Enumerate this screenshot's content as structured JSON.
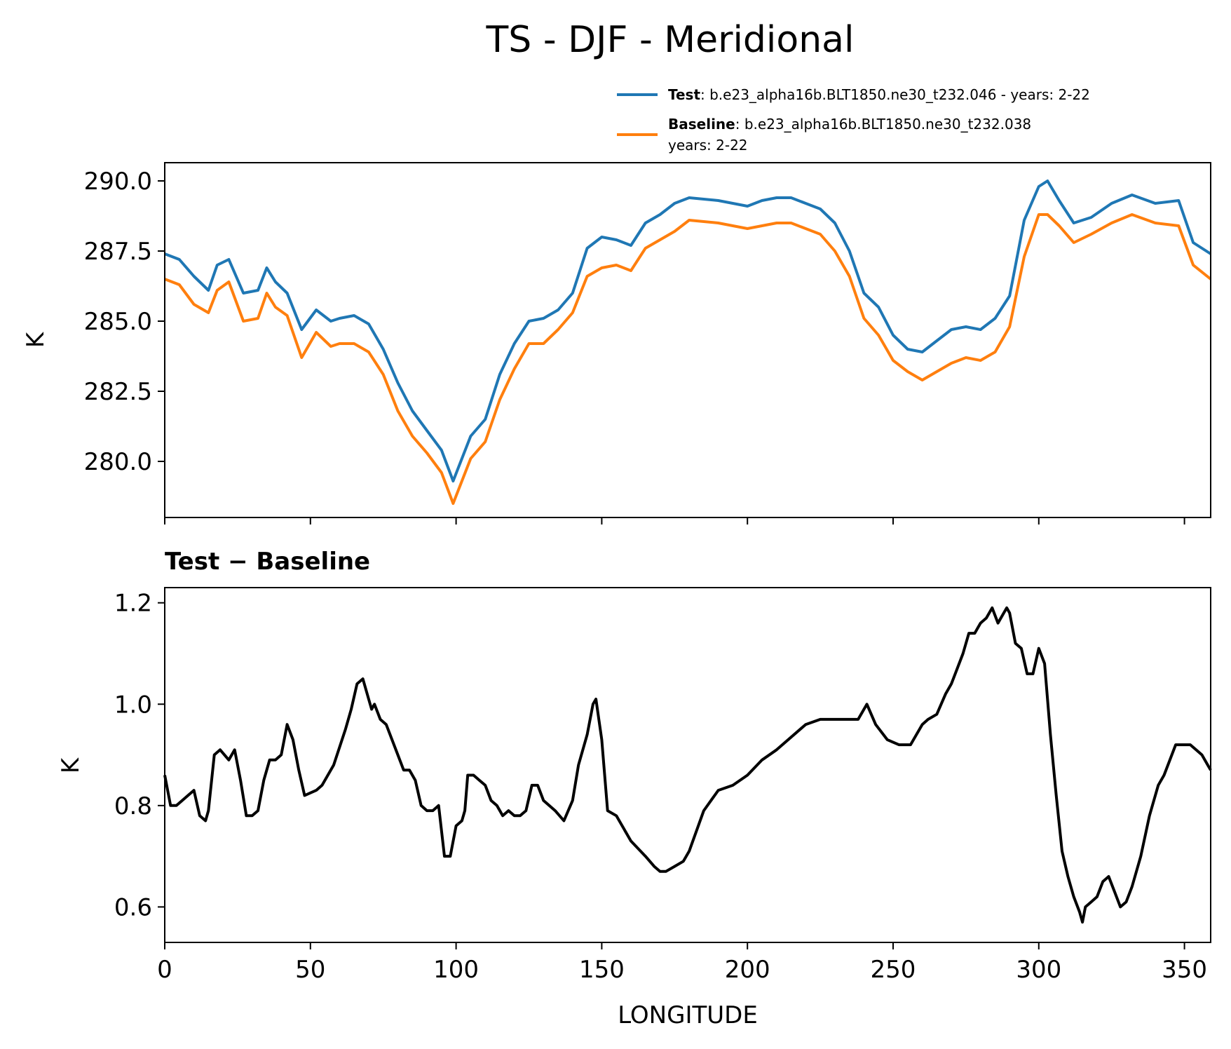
{
  "chart_data": [
    {
      "type": "line",
      "title": "TS - DJF - Meridional",
      "xlabel": "",
      "ylabel": "K",
      "xlim": [
        0,
        359
      ],
      "ylim": [
        278.0,
        290.65
      ],
      "xticks": [
        0,
        50,
        100,
        150,
        200,
        250,
        300,
        350
      ],
      "yticks": [
        280.0,
        282.5,
        285.0,
        287.5,
        290.0
      ],
      "ytick_labels": [
        "280.0",
        "282.5",
        "285.0",
        "287.5",
        "290.0"
      ],
      "legend_position": "top-right, above the plot",
      "grid": false,
      "series": [
        {
          "name": "Test",
          "label": "Test",
          "detail": ": b.e23_alpha16b.BLT1850.ne30_t232.046 - years: 2-22",
          "color": "#1f77b4",
          "x": [
            0,
            5,
            10,
            15,
            18,
            22,
            27,
            32,
            35,
            38,
            42,
            47,
            52,
            57,
            60,
            65,
            70,
            75,
            80,
            85,
            90,
            95,
            99,
            102,
            105,
            110,
            115,
            120,
            125,
            130,
            135,
            140,
            145,
            150,
            155,
            160,
            165,
            170,
            175,
            180,
            190,
            200,
            205,
            210,
            215,
            220,
            225,
            230,
            235,
            240,
            245,
            250,
            255,
            260,
            265,
            270,
            275,
            280,
            285,
            290,
            295,
            300,
            303,
            307,
            312,
            318,
            325,
            332,
            340,
            348,
            353,
            359
          ],
          "values": [
            287.4,
            287.2,
            286.6,
            286.1,
            287.0,
            287.2,
            286.0,
            286.1,
            286.9,
            286.4,
            286.0,
            284.7,
            285.4,
            285.0,
            285.1,
            285.2,
            284.9,
            284.0,
            282.8,
            281.8,
            281.1,
            280.4,
            279.3,
            280.1,
            280.9,
            281.5,
            283.1,
            284.2,
            285.0,
            285.1,
            285.4,
            286.0,
            287.6,
            288.0,
            287.9,
            287.7,
            288.5,
            288.8,
            289.2,
            289.4,
            289.3,
            289.1,
            289.3,
            289.4,
            289.4,
            289.2,
            289.0,
            288.5,
            287.5,
            286.0,
            285.5,
            284.5,
            284.0,
            283.9,
            284.3,
            284.7,
            284.8,
            284.7,
            285.1,
            285.9,
            288.6,
            289.8,
            290.0,
            289.3,
            288.5,
            288.7,
            289.2,
            289.5,
            289.2,
            289.3,
            287.8,
            287.4
          ]
        },
        {
          "name": "Baseline",
          "label": "Baseline",
          "detail": ": b.e23_alpha16b.BLT1850.ne30_t232.038",
          "detail2": "years: 2-22",
          "color": "#ff7f0e",
          "x": [
            0,
            5,
            10,
            15,
            18,
            22,
            27,
            32,
            35,
            38,
            42,
            47,
            52,
            57,
            60,
            65,
            70,
            75,
            80,
            85,
            90,
            95,
            99,
            102,
            105,
            110,
            115,
            120,
            125,
            130,
            135,
            140,
            145,
            150,
            155,
            160,
            165,
            170,
            175,
            180,
            190,
            200,
            205,
            210,
            215,
            220,
            225,
            230,
            235,
            240,
            245,
            250,
            255,
            260,
            265,
            270,
            275,
            280,
            285,
            290,
            295,
            300,
            303,
            307,
            312,
            318,
            325,
            332,
            340,
            348,
            353,
            359
          ],
          "values": [
            286.5,
            286.3,
            285.6,
            285.3,
            286.1,
            286.4,
            285.0,
            285.1,
            286.0,
            285.5,
            285.2,
            283.7,
            284.6,
            284.1,
            284.2,
            284.2,
            283.9,
            283.1,
            281.8,
            280.9,
            280.3,
            279.6,
            278.5,
            279.3,
            280.1,
            280.7,
            282.2,
            283.3,
            284.2,
            284.2,
            284.7,
            285.3,
            286.6,
            286.9,
            287.0,
            286.8,
            287.6,
            287.9,
            288.2,
            288.6,
            288.5,
            288.3,
            288.4,
            288.5,
            288.5,
            288.3,
            288.1,
            287.5,
            286.6,
            285.1,
            284.5,
            283.6,
            283.2,
            282.9,
            283.2,
            283.5,
            283.7,
            283.6,
            283.9,
            284.8,
            287.3,
            288.8,
            288.8,
            288.4,
            287.8,
            288.1,
            288.5,
            288.8,
            288.5,
            288.4,
            287.0,
            286.5
          ]
        }
      ],
      "legend": [
        {
          "label": "Test",
          "detail": ": b.e23_alpha16b.BLT1850.ne30_t232.046 - years: 2-22"
        },
        {
          "label": "Baseline",
          "detail": ": b.e23_alpha16b.BLT1850.ne30_t232.038",
          "detail2": "years: 2-22"
        }
      ]
    },
    {
      "type": "line",
      "title": "Test − Baseline",
      "xlabel": "LONGITUDE",
      "ylabel": "K",
      "xlim": [
        0,
        359
      ],
      "ylim": [
        0.53,
        1.23
      ],
      "xticks": [
        0,
        50,
        100,
        150,
        200,
        250,
        300,
        350
      ],
      "xtick_labels": [
        "0",
        "50",
        "100",
        "150",
        "200",
        "250",
        "300",
        "350"
      ],
      "yticks": [
        0.6,
        0.8,
        1.0,
        1.2
      ],
      "ytick_labels": [
        "0.6",
        "0.8",
        "1.0",
        "1.2"
      ],
      "grid": false,
      "series": [
        {
          "name": "Test - Baseline",
          "color": "#000000",
          "x": [
            0,
            2,
            4,
            6,
            8,
            10,
            12,
            14,
            15,
            17,
            19,
            22,
            24,
            26,
            28,
            30,
            32,
            34,
            36,
            38,
            40,
            42,
            44,
            46,
            48,
            52,
            54,
            58,
            62,
            64,
            66,
            68,
            70,
            71,
            72,
            74,
            76,
            80,
            82,
            84,
            86,
            88,
            90,
            92,
            94,
            96,
            98,
            100,
            102,
            103,
            104,
            106,
            108,
            110,
            112,
            114,
            116,
            118,
            120,
            122,
            124,
            126,
            128,
            130,
            134,
            137,
            140,
            142,
            145,
            147,
            148,
            150,
            152,
            155,
            160,
            165,
            168,
            170,
            172,
            175,
            178,
            180,
            185,
            190,
            195,
            200,
            205,
            210,
            220,
            225,
            230,
            235,
            238,
            241,
            244,
            248,
            252,
            256,
            260,
            262,
            265,
            268,
            270,
            274,
            276,
            278,
            280,
            282,
            284,
            286,
            288,
            289,
            290,
            292,
            294,
            296,
            298,
            300,
            302,
            304,
            306,
            308,
            310,
            312,
            314,
            315,
            316,
            318,
            320,
            322,
            324,
            326,
            328,
            330,
            332,
            335,
            338,
            341,
            343,
            345,
            347,
            350,
            352,
            354,
            356,
            358,
            359
          ],
          "values": [
            0.86,
            0.8,
            0.8,
            0.81,
            0.82,
            0.83,
            0.78,
            0.77,
            0.79,
            0.9,
            0.91,
            0.89,
            0.91,
            0.85,
            0.78,
            0.78,
            0.79,
            0.85,
            0.89,
            0.89,
            0.9,
            0.96,
            0.93,
            0.87,
            0.82,
            0.83,
            0.84,
            0.88,
            0.95,
            0.99,
            1.04,
            1.05,
            1.01,
            0.99,
            1.0,
            0.97,
            0.96,
            0.9,
            0.87,
            0.87,
            0.85,
            0.8,
            0.79,
            0.79,
            0.8,
            0.7,
            0.7,
            0.76,
            0.77,
            0.79,
            0.86,
            0.86,
            0.85,
            0.84,
            0.81,
            0.8,
            0.78,
            0.79,
            0.78,
            0.78,
            0.79,
            0.84,
            0.84,
            0.81,
            0.79,
            0.77,
            0.81,
            0.88,
            0.94,
            1.0,
            1.01,
            0.93,
            0.79,
            0.78,
            0.73,
            0.7,
            0.68,
            0.67,
            0.67,
            0.68,
            0.69,
            0.71,
            0.79,
            0.83,
            0.84,
            0.86,
            0.89,
            0.91,
            0.96,
            0.97,
            0.97,
            0.97,
            0.97,
            1.0,
            0.96,
            0.93,
            0.92,
            0.92,
            0.96,
            0.97,
            0.98,
            1.02,
            1.04,
            1.1,
            1.14,
            1.14,
            1.16,
            1.17,
            1.19,
            1.16,
            1.18,
            1.19,
            1.18,
            1.12,
            1.11,
            1.06,
            1.06,
            1.11,
            1.08,
            0.94,
            0.82,
            0.71,
            0.66,
            0.62,
            0.59,
            0.57,
            0.6,
            0.61,
            0.62,
            0.65,
            0.66,
            0.63,
            0.6,
            0.61,
            0.64,
            0.7,
            0.78,
            0.84,
            0.86,
            0.89,
            0.92,
            0.92,
            0.92,
            0.91,
            0.9,
            0.88,
            0.87
          ]
        }
      ]
    }
  ]
}
